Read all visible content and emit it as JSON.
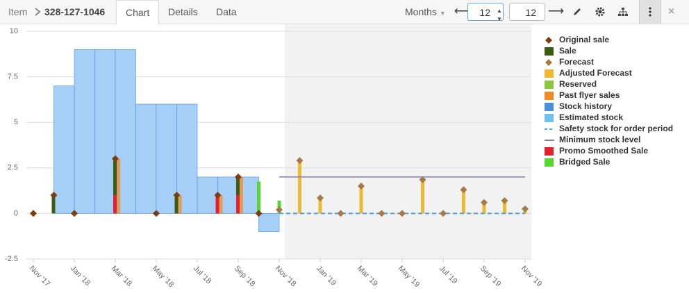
{
  "toolbar": {
    "item_label": "Item",
    "item_id": "328-127-1046",
    "tabs": [
      "Chart",
      "Details",
      "Data"
    ],
    "period": "Months",
    "from": 12,
    "to": 12
  },
  "chart_data": {
    "type": "combo",
    "categories": [
      "Nov '17",
      null,
      "Jan '18",
      null,
      "Mar '18",
      null,
      "May '18",
      null,
      "Jul '18",
      null,
      "Sep '18",
      null,
      "Nov '18",
      null,
      "Jan '19",
      null,
      "Mar '19",
      null,
      "May '19",
      null,
      "Jul '19",
      null,
      "Sep '19",
      null,
      "Nov '19"
    ],
    "ylim": [
      -2.5,
      10
    ],
    "yticks": [
      -2.5,
      0,
      2.5,
      5,
      7.5,
      10
    ],
    "grid": true,
    "series": [
      {
        "name": "Original sale",
        "kind": "diamond",
        "color": "#7a3e12",
        "values": [
          0,
          1,
          0,
          null,
          3,
          null,
          0,
          1,
          null,
          1,
          2,
          0,
          null,
          null,
          null,
          null,
          null,
          null,
          null,
          null,
          null,
          null,
          null,
          null,
          null
        ]
      },
      {
        "name": "Sale",
        "kind": "bar",
        "stack": true,
        "color": "#3c5c16",
        "values": [
          null,
          1,
          null,
          null,
          2,
          null,
          null,
          1,
          null,
          null,
          1,
          null,
          null,
          null,
          null,
          null,
          null,
          null,
          null,
          null,
          null,
          null,
          null,
          null,
          null
        ]
      },
      {
        "name": "Forecast",
        "kind": "diamond",
        "color": "#a77a45",
        "values": [
          null,
          null,
          null,
          null,
          null,
          null,
          null,
          null,
          null,
          null,
          null,
          null,
          0.2,
          2.9,
          0.85,
          0,
          1.5,
          0,
          0,
          1.85,
          0,
          1.3,
          0.6,
          0.7,
          0.25
        ]
      },
      {
        "name": "Adjusted Forecast",
        "kind": "bar",
        "color": "#f0b932",
        "values": [
          null,
          null,
          null,
          null,
          null,
          null,
          null,
          null,
          null,
          null,
          null,
          null,
          0.2,
          2.9,
          0.85,
          0,
          1.5,
          0,
          0,
          1.85,
          0,
          1.3,
          0.6,
          0.7,
          0.25
        ]
      },
      {
        "name": "Reserved",
        "kind": "bar",
        "color": "#8cc63f",
        "values": [
          null,
          null,
          null,
          null,
          null,
          null,
          null,
          null,
          null,
          null,
          null,
          null,
          null,
          null,
          null,
          null,
          null,
          null,
          null,
          null,
          null,
          null,
          null,
          null,
          null
        ]
      },
      {
        "name": "Past flyer sales",
        "kind": "bar",
        "offset": true,
        "color": "#f08a24",
        "values": [
          null,
          null,
          null,
          null,
          3,
          null,
          null,
          1,
          null,
          1,
          2,
          null,
          null,
          null,
          null,
          null,
          null,
          null,
          null,
          null,
          null,
          null,
          null,
          null,
          null
        ]
      },
      {
        "name": "Stock history",
        "kind": "step-area",
        "color": "#4a8fdb",
        "values": [
          null,
          7,
          9,
          9,
          9,
          6,
          6,
          6,
          2,
          2,
          2,
          -1,
          null,
          null,
          null,
          null,
          null,
          null,
          null,
          null,
          null,
          null,
          null,
          null,
          null
        ]
      },
      {
        "name": "Estimated stock",
        "kind": "step-area",
        "color": "#6ec1ee",
        "values": [
          null,
          null,
          null,
          null,
          null,
          null,
          null,
          null,
          null,
          null,
          null,
          null,
          null,
          null,
          null,
          null,
          null,
          null,
          null,
          null,
          null,
          null,
          null,
          null,
          null
        ]
      },
      {
        "name": "Safety stock for order period",
        "kind": "dashed-line",
        "color": "#4ea1e0",
        "values": [
          null,
          null,
          null,
          null,
          null,
          null,
          null,
          null,
          null,
          null,
          null,
          null,
          0,
          0,
          0,
          0,
          0,
          0,
          0,
          0,
          0,
          0,
          0,
          0,
          0
        ]
      },
      {
        "name": "Minimum stock level",
        "kind": "line",
        "color": "#8a7bab",
        "values": [
          null,
          null,
          null,
          null,
          null,
          null,
          null,
          null,
          null,
          null,
          null,
          null,
          2,
          2,
          2,
          2,
          2,
          2,
          2,
          2,
          2,
          2,
          2,
          2,
          2
        ]
      },
      {
        "name": "Promo Smoothed Sale",
        "kind": "bar",
        "stack": true,
        "color": "#e51f2f",
        "values": [
          null,
          null,
          null,
          null,
          1,
          null,
          null,
          null,
          null,
          1,
          1,
          null,
          null,
          null,
          null,
          null,
          null,
          null,
          null,
          null,
          null,
          null,
          null,
          null,
          null
        ]
      },
      {
        "name": "Bridged Sale",
        "kind": "bar",
        "color": "#55d82f",
        "values": [
          null,
          null,
          null,
          null,
          null,
          null,
          null,
          null,
          null,
          null,
          null,
          1.75,
          0.7,
          null,
          null,
          null,
          null,
          null,
          null,
          null,
          null,
          null,
          null,
          null,
          null
        ]
      }
    ]
  }
}
